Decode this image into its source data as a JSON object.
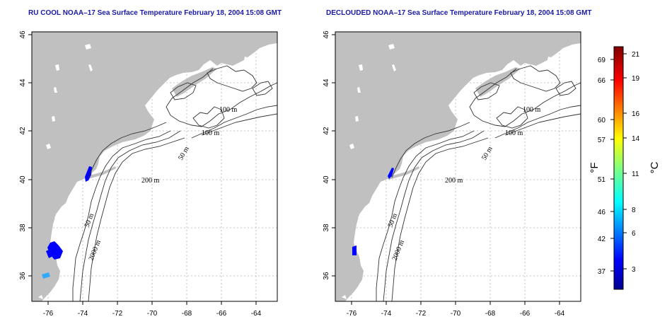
{
  "panels": [
    {
      "id": "left",
      "title": "RU COOL NOAA–17 Sea Surface Temperature February 18, 2004 15:08 GMT",
      "x_ticks": [
        "-76",
        "-74",
        "-72",
        "-70",
        "-68",
        "-66",
        "-64"
      ],
      "y_ticks": [
        "36",
        "38",
        "40",
        "42",
        "44",
        "46"
      ],
      "contour_labels": [
        "100 m",
        "100 m",
        "50 m",
        "200 m",
        "50 m",
        "2000 m"
      ]
    },
    {
      "id": "right",
      "title": "DECLOUDED NOAA–17 Sea Surface Temperature February 18, 2004 15:08 GMT",
      "x_ticks": [
        "-76",
        "-74",
        "-72",
        "-70",
        "-68",
        "-66",
        "-64"
      ],
      "y_ticks": [
        "36",
        "38",
        "40",
        "42",
        "44",
        "46"
      ],
      "contour_labels": [
        "100 m",
        "100 m",
        "50 m",
        "200 m",
        "50 m",
        "2000 m"
      ]
    }
  ],
  "colorbar": {
    "fahrenheit_ticks": [
      "69",
      "66",
      "60",
      "57",
      "51",
      "46",
      "42",
      "37"
    ],
    "celsius_ticks": [
      "21",
      "19",
      "16",
      "14",
      "11",
      "8",
      "6",
      "3"
    ],
    "fahrenheit_label": "°F",
    "celsius_label": "°C"
  },
  "colors": {
    "land": "#c0c0c0",
    "grid": "#b4b4b4",
    "contour": "#333333",
    "sst_cold": "#0000ff"
  }
}
